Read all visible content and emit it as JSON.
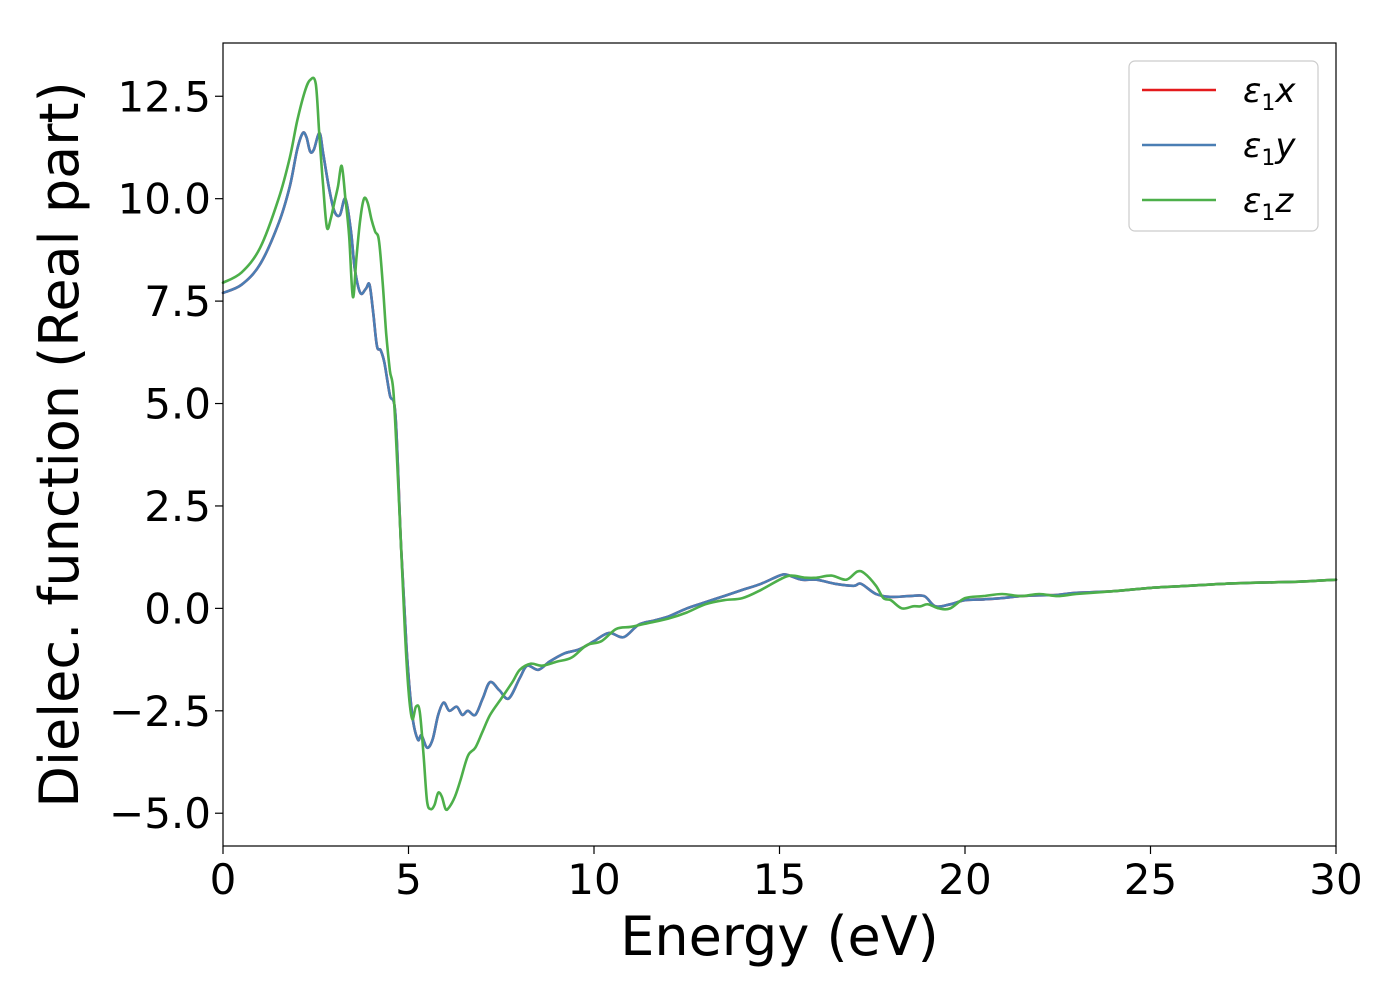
{
  "chart_data": {
    "type": "line",
    "xlabel": "Energy (eV)",
    "ylabel": "Dielec. function (Real part)",
    "xlim": [
      0,
      30
    ],
    "ylim": [
      -5.8,
      13.8
    ],
    "xticks": [
      0,
      5,
      10,
      15,
      20,
      25,
      30
    ],
    "xtick_labels": [
      "0",
      "5",
      "10",
      "15",
      "20",
      "25",
      "30"
    ],
    "yticks": [
      -5.0,
      -2.5,
      0.0,
      2.5,
      5.0,
      7.5,
      10.0,
      12.5
    ],
    "ytick_labels": [
      "−5.0",
      "−2.5",
      "0.0",
      "2.5",
      "5.0",
      "7.5",
      "10.0",
      "12.5"
    ],
    "grid": false,
    "legend_position": "top-right",
    "series": [
      {
        "name": "ε₁x",
        "legend": {
          "base": "ε",
          "sub": "1",
          "var": "x"
        },
        "color": "#e41a1c",
        "x": [
          0,
          0.5,
          1.0,
          1.5,
          1.8,
          2.0,
          2.15,
          2.25,
          2.35,
          2.45,
          2.6,
          2.7,
          2.85,
          3.0,
          3.15,
          3.3,
          3.45,
          3.55,
          3.7,
          3.85,
          3.95,
          4.05,
          4.15,
          4.25,
          4.35,
          4.5,
          4.65,
          4.8,
          4.95,
          5.1,
          5.25,
          5.35,
          5.5,
          5.65,
          5.8,
          5.95,
          6.1,
          6.3,
          6.45,
          6.6,
          6.8,
          7.0,
          7.2,
          7.45,
          7.7,
          8.0,
          8.2,
          8.5,
          8.8,
          9.2,
          9.6,
          10.0,
          10.4,
          10.8,
          11.2,
          11.6,
          12.0,
          12.5,
          13.0,
          13.5,
          14.0,
          14.5,
          15.0,
          15.2,
          15.6,
          16.0,
          16.5,
          17.0,
          17.2,
          17.6,
          18.0,
          18.5,
          18.9,
          19.2,
          19.6,
          20.0,
          20.5,
          21.0,
          21.5,
          22.0,
          22.5,
          23.0,
          24.0,
          25.0,
          26.0,
          27.0,
          28.0,
          29.0,
          30.0
        ],
        "y": [
          7.7,
          7.9,
          8.4,
          9.4,
          10.3,
          11.2,
          11.6,
          11.5,
          11.15,
          11.2,
          11.6,
          11.1,
          10.3,
          9.7,
          9.6,
          10.0,
          9.2,
          8.3,
          7.7,
          7.8,
          7.9,
          7.2,
          6.4,
          6.3,
          6.0,
          5.2,
          4.7,
          1.5,
          -1.0,
          -2.6,
          -3.2,
          -3.1,
          -3.4,
          -3.2,
          -2.6,
          -2.3,
          -2.5,
          -2.4,
          -2.6,
          -2.5,
          -2.6,
          -2.2,
          -1.8,
          -2.0,
          -2.2,
          -1.7,
          -1.4,
          -1.5,
          -1.3,
          -1.1,
          -1.0,
          -0.8,
          -0.6,
          -0.7,
          -0.4,
          -0.3,
          -0.2,
          0.0,
          0.15,
          0.3,
          0.45,
          0.6,
          0.8,
          0.82,
          0.7,
          0.7,
          0.6,
          0.55,
          0.6,
          0.35,
          0.28,
          0.3,
          0.3,
          0.05,
          0.1,
          0.2,
          0.22,
          0.25,
          0.3,
          0.32,
          0.33,
          0.38,
          0.42,
          0.5,
          0.55,
          0.6,
          0.63,
          0.65,
          0.7
        ]
      },
      {
        "name": "ε₁y",
        "legend": {
          "base": "ε",
          "sub": "1",
          "var": "y"
        },
        "color": "#4a7eb4",
        "x": [
          0,
          0.5,
          1.0,
          1.5,
          1.8,
          2.0,
          2.15,
          2.25,
          2.35,
          2.45,
          2.6,
          2.7,
          2.85,
          3.0,
          3.15,
          3.3,
          3.45,
          3.55,
          3.7,
          3.85,
          3.95,
          4.05,
          4.15,
          4.25,
          4.35,
          4.5,
          4.65,
          4.8,
          4.95,
          5.1,
          5.25,
          5.35,
          5.5,
          5.65,
          5.8,
          5.95,
          6.1,
          6.3,
          6.45,
          6.6,
          6.8,
          7.0,
          7.2,
          7.45,
          7.7,
          8.0,
          8.2,
          8.5,
          8.8,
          9.2,
          9.6,
          10.0,
          10.4,
          10.8,
          11.2,
          11.6,
          12.0,
          12.5,
          13.0,
          13.5,
          14.0,
          14.5,
          15.0,
          15.2,
          15.6,
          16.0,
          16.5,
          17.0,
          17.2,
          17.6,
          18.0,
          18.5,
          18.9,
          19.2,
          19.6,
          20.0,
          20.5,
          21.0,
          21.5,
          22.0,
          22.5,
          23.0,
          24.0,
          25.0,
          26.0,
          27.0,
          28.0,
          29.0,
          30.0
        ],
        "y": [
          7.7,
          7.9,
          8.4,
          9.4,
          10.3,
          11.2,
          11.6,
          11.5,
          11.15,
          11.2,
          11.6,
          11.1,
          10.3,
          9.7,
          9.6,
          10.0,
          9.2,
          8.3,
          7.7,
          7.8,
          7.9,
          7.2,
          6.4,
          6.3,
          6.0,
          5.2,
          4.7,
          1.5,
          -1.0,
          -2.6,
          -3.2,
          -3.1,
          -3.4,
          -3.2,
          -2.6,
          -2.3,
          -2.5,
          -2.4,
          -2.6,
          -2.5,
          -2.6,
          -2.2,
          -1.8,
          -2.0,
          -2.2,
          -1.7,
          -1.4,
          -1.5,
          -1.3,
          -1.1,
          -1.0,
          -0.8,
          -0.6,
          -0.7,
          -0.4,
          -0.3,
          -0.2,
          0.0,
          0.15,
          0.3,
          0.45,
          0.6,
          0.8,
          0.82,
          0.7,
          0.7,
          0.6,
          0.55,
          0.6,
          0.35,
          0.28,
          0.3,
          0.3,
          0.05,
          0.1,
          0.2,
          0.22,
          0.25,
          0.3,
          0.32,
          0.33,
          0.38,
          0.42,
          0.5,
          0.55,
          0.6,
          0.63,
          0.65,
          0.7
        ]
      },
      {
        "name": "ε₁z",
        "legend": {
          "base": "ε",
          "sub": "1",
          "var": "z"
        },
        "color": "#4daf4a",
        "x": [
          0,
          0.5,
          1.0,
          1.5,
          1.8,
          2.0,
          2.2,
          2.35,
          2.5,
          2.6,
          2.7,
          2.8,
          2.9,
          3.0,
          3.1,
          3.2,
          3.3,
          3.4,
          3.5,
          3.6,
          3.7,
          3.8,
          3.9,
          4.0,
          4.1,
          4.2,
          4.3,
          4.4,
          4.5,
          4.6,
          4.75,
          4.9,
          5.0,
          5.1,
          5.2,
          5.3,
          5.4,
          5.5,
          5.6,
          5.7,
          5.8,
          5.9,
          6.0,
          6.1,
          6.25,
          6.4,
          6.6,
          6.8,
          7.0,
          7.2,
          7.5,
          7.8,
          8.0,
          8.3,
          8.6,
          9.0,
          9.4,
          9.8,
          10.2,
          10.6,
          11.0,
          11.5,
          12.0,
          12.5,
          13.0,
          13.5,
          14.0,
          14.5,
          15.0,
          15.3,
          15.7,
          16.0,
          16.4,
          16.8,
          17.1,
          17.3,
          17.6,
          17.8,
          18.0,
          18.3,
          18.6,
          18.8,
          19.0,
          19.3,
          19.6,
          20.0,
          20.5,
          21.0,
          21.5,
          22.0,
          22.5,
          23.0,
          24.0,
          25.0,
          26.0,
          27.0,
          28.0,
          29.0,
          30.0
        ],
        "y": [
          7.95,
          8.2,
          8.8,
          10.0,
          11.0,
          11.9,
          12.6,
          12.9,
          12.8,
          11.5,
          10.3,
          9.3,
          9.5,
          9.9,
          10.3,
          10.8,
          10.0,
          9.1,
          7.6,
          8.6,
          9.5,
          10.0,
          9.9,
          9.5,
          9.2,
          9.0,
          8.0,
          6.7,
          5.8,
          5.2,
          2.5,
          -0.5,
          -2.0,
          -2.7,
          -2.4,
          -2.5,
          -3.5,
          -4.7,
          -4.9,
          -4.8,
          -4.5,
          -4.6,
          -4.9,
          -4.85,
          -4.6,
          -4.2,
          -3.6,
          -3.4,
          -3.0,
          -2.6,
          -2.2,
          -1.8,
          -1.5,
          -1.35,
          -1.4,
          -1.3,
          -1.2,
          -0.9,
          -0.8,
          -0.5,
          -0.45,
          -0.35,
          -0.25,
          -0.1,
          0.1,
          0.2,
          0.25,
          0.45,
          0.7,
          0.8,
          0.75,
          0.75,
          0.8,
          0.7,
          0.9,
          0.85,
          0.55,
          0.25,
          0.2,
          0.0,
          0.05,
          0.05,
          0.1,
          0.0,
          0.0,
          0.25,
          0.3,
          0.35,
          0.3,
          0.35,
          0.3,
          0.35,
          0.42,
          0.5,
          0.55,
          0.6,
          0.63,
          0.65,
          0.7
        ]
      }
    ]
  }
}
